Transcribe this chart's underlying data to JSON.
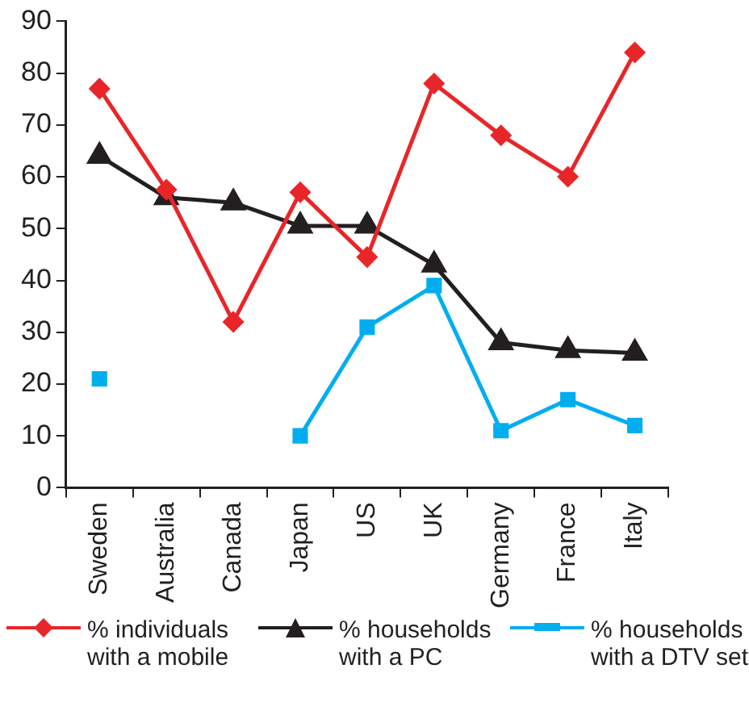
{
  "chart_data": {
    "type": "line",
    "categories": [
      "Sweden",
      "Australia",
      "Canada",
      "Japan",
      "US",
      "UK",
      "Germany",
      "France",
      "Italy"
    ],
    "series": [
      {
        "name": "% individuals with a mobile",
        "color": "#e8262a",
        "marker": "diamond",
        "values": [
          77,
          57.5,
          32,
          57,
          44.5,
          78,
          68,
          60,
          84
        ]
      },
      {
        "name": "% households with a PC",
        "color": "#231f20",
        "marker": "triangle",
        "values": [
          64,
          56,
          55,
          50.5,
          50.5,
          43,
          28,
          26.5,
          26
        ]
      },
      {
        "name": "% households with a DTV set",
        "color": "#00aeef",
        "marker": "square",
        "values": [
          21,
          null,
          null,
          10,
          31,
          39,
          11,
          17,
          12
        ]
      }
    ],
    "ylim": [
      0,
      90
    ],
    "yticks": [
      0,
      10,
      20,
      30,
      40,
      50,
      60,
      70,
      80,
      90
    ],
    "grid": false,
    "legend": "bottom"
  }
}
